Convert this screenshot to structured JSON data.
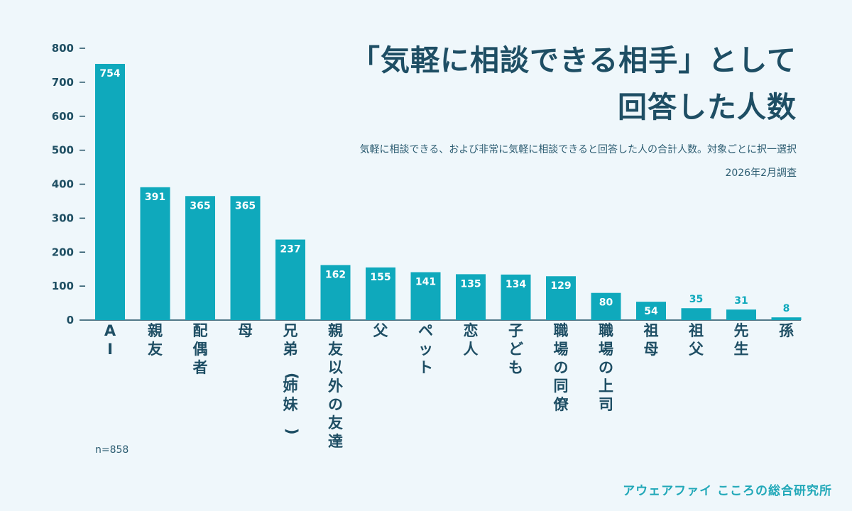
{
  "title_line1": "「気軽に相談できる相手」として",
  "title_line2": "回答した人数",
  "subtitle": "気軽に相談できる、および非常に気軽に相談できると回答した人の合計人数。対象ごとに択一選択",
  "date": "2026年2月調査",
  "sample_size": "n=858",
  "brand": "アウェアファイ こころの総合研究所",
  "colors": {
    "bar": "#0fa9bc",
    "text": "#1e4e64",
    "brand": "#21a8b8",
    "background": "#eff7fb"
  },
  "chart_data": {
    "type": "bar",
    "categories": [
      "AI",
      "親友",
      "配偶者",
      "母",
      "兄弟(姉妹)",
      "親友以外の友達",
      "父",
      "ペット",
      "恋人",
      "子ども",
      "職場の同僚",
      "職場の上司",
      "祖母",
      "祖父",
      "先生",
      "孫"
    ],
    "values": [
      754,
      391,
      365,
      365,
      237,
      162,
      155,
      141,
      135,
      134,
      129,
      80,
      54,
      35,
      31,
      8
    ],
    "data_labels": [
      "754",
      "391",
      "365",
      "365",
      "237",
      "162",
      "155",
      "141",
      "135",
      "134",
      "129",
      "80",
      "54",
      "35",
      "31",
      "8"
    ],
    "yticks": [
      0,
      100,
      200,
      300,
      400,
      500,
      600,
      700,
      800
    ],
    "ylim": [
      0,
      800
    ],
    "grid": false,
    "legend": "none",
    "title": "「気軽に相談できる相手」として回答した人数",
    "xlabel": "",
    "ylabel": ""
  }
}
